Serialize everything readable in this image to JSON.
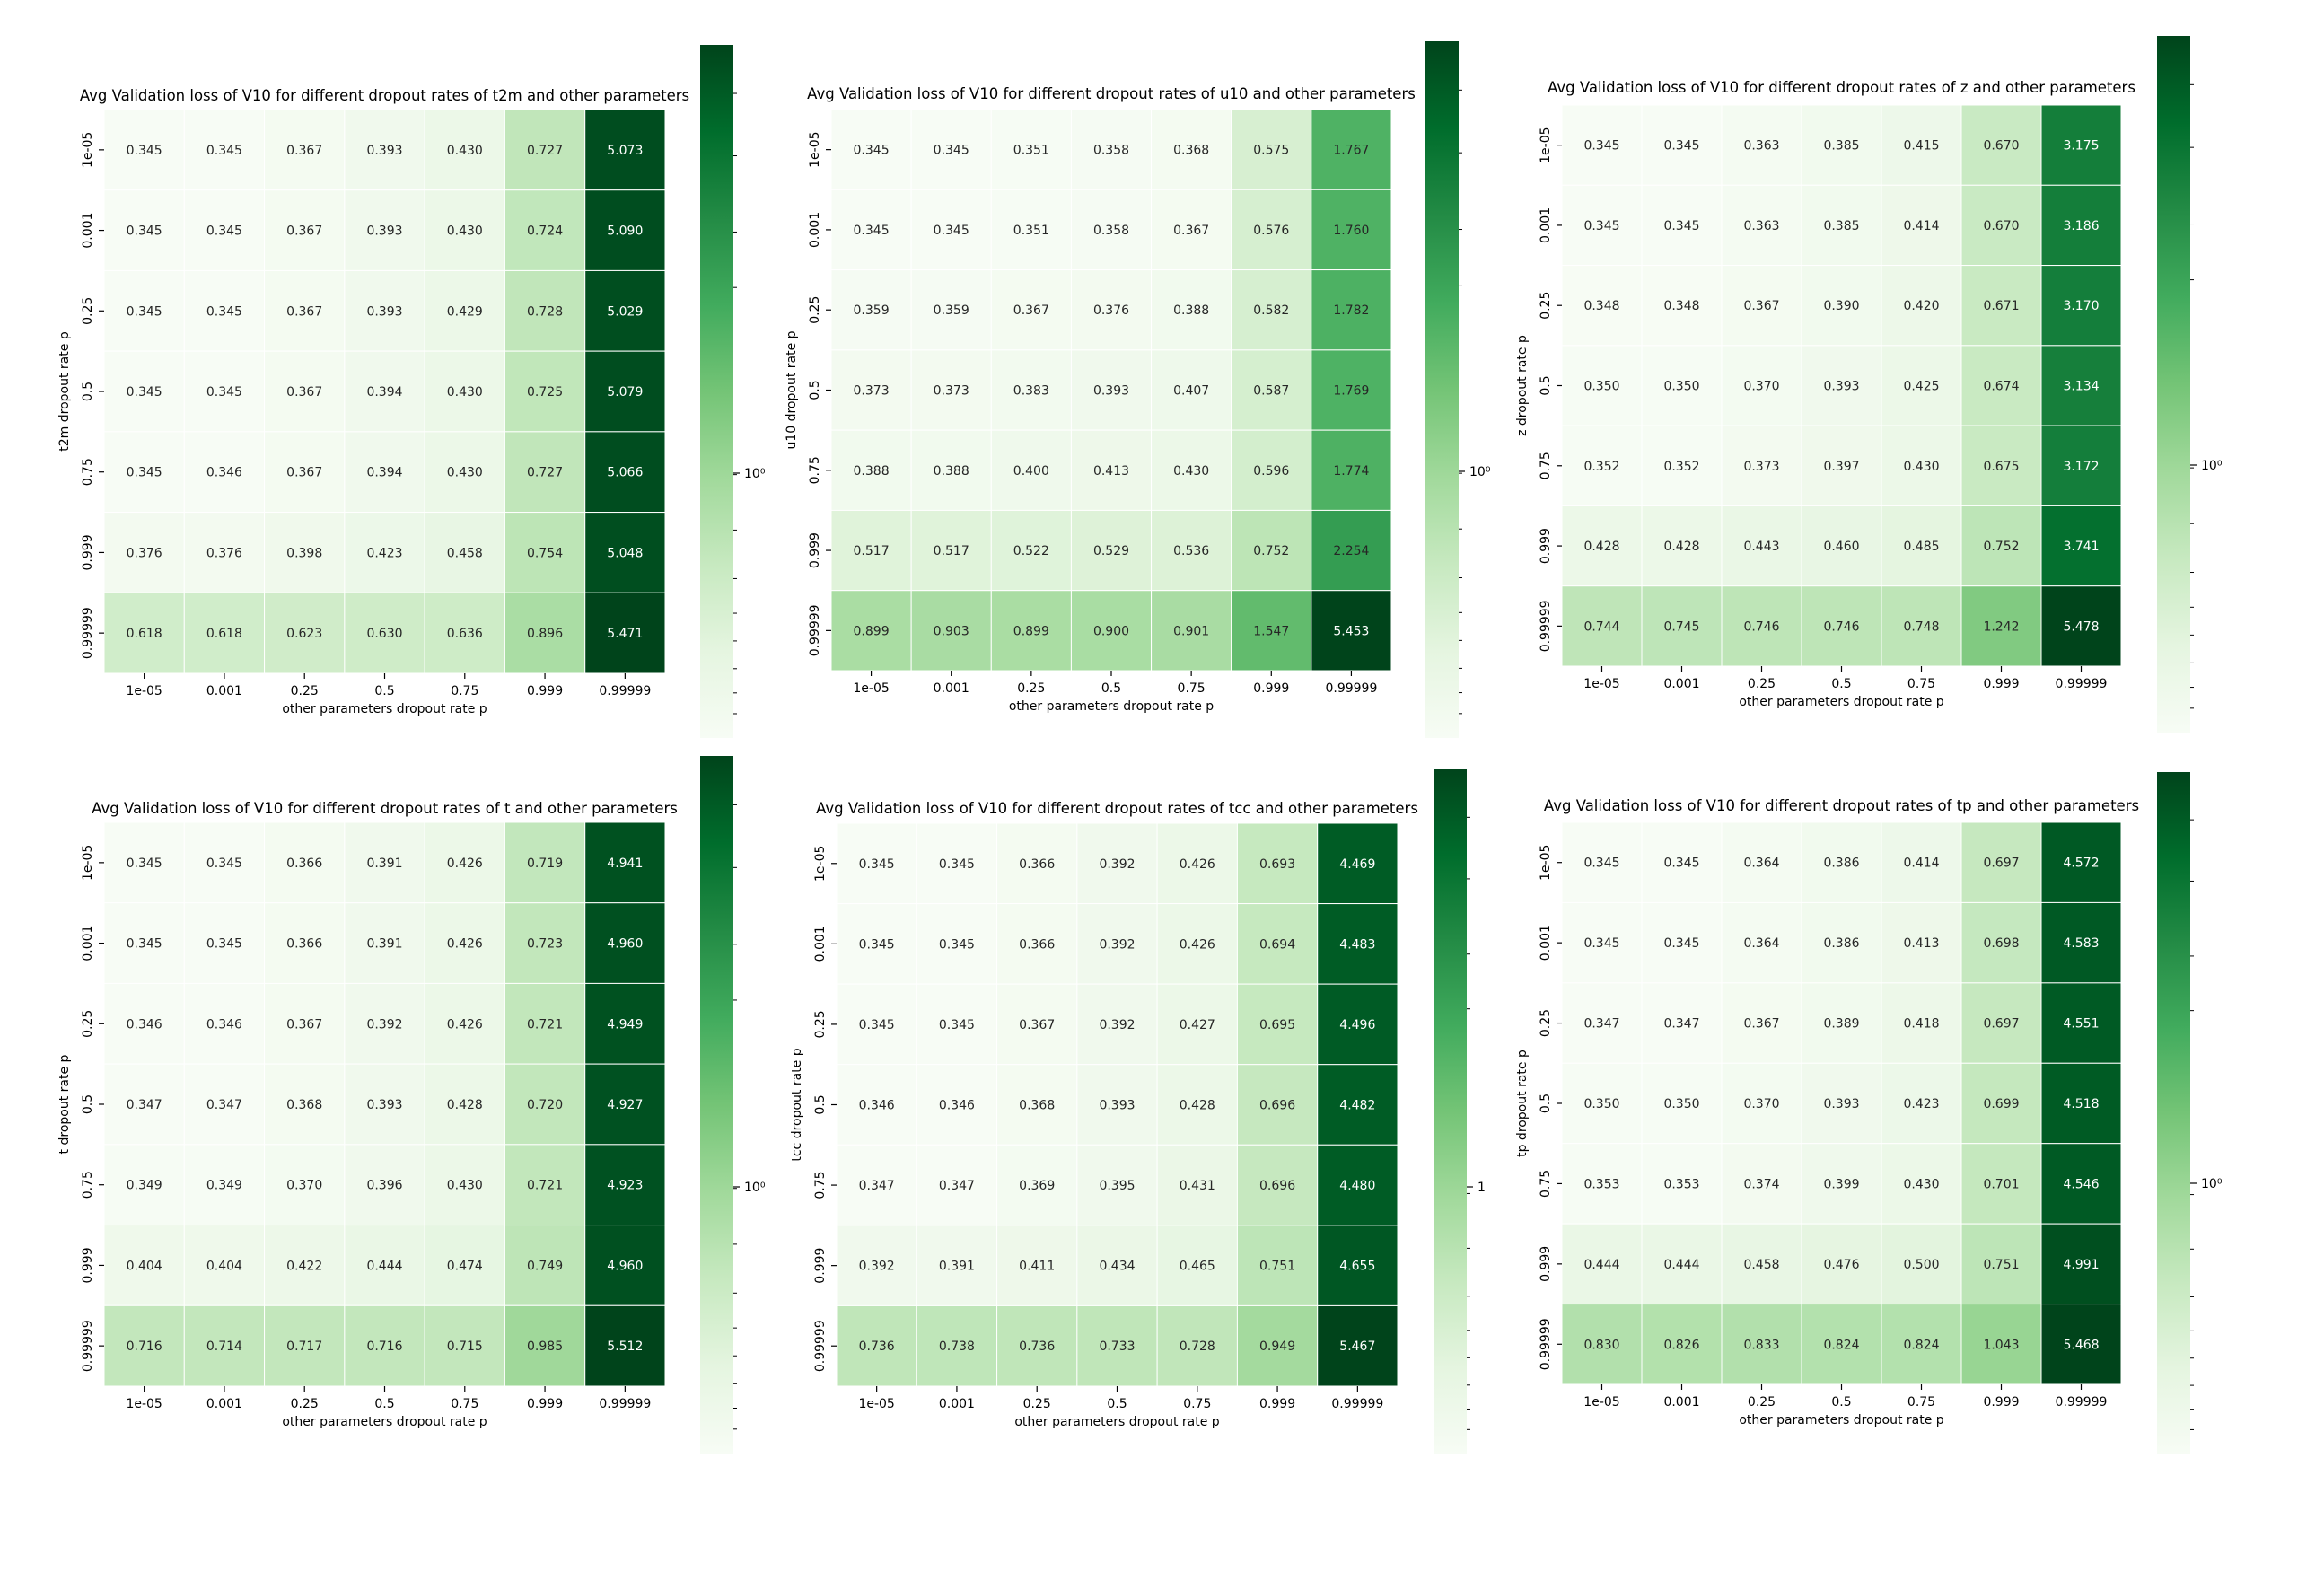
{
  "chart_data": [
    {
      "type": "heatmap",
      "title": "Avg Validation loss of V10 for different dropout rates of t2m and other parameters",
      "xlabel": "other parameters dropout rate p",
      "ylabel": "t2m dropout rate p",
      "x_categories": [
        "1e-05",
        "0.001",
        "0.25",
        "0.5",
        "0.75",
        "0.999",
        "0.99999"
      ],
      "y_categories": [
        "1e-05",
        "0.001",
        "0.25",
        "0.5",
        "0.75",
        "0.999",
        "0.99999"
      ],
      "colorbar_label": "10⁰",
      "color_scale": "log",
      "colormap": "Greens",
      "values": [
        [
          "0.345",
          "0.345",
          "0.367",
          "0.393",
          "0.430",
          "0.727",
          "5.073"
        ],
        [
          "0.345",
          "0.345",
          "0.367",
          "0.393",
          "0.430",
          "0.724",
          "5.090"
        ],
        [
          "0.345",
          "0.345",
          "0.367",
          "0.393",
          "0.429",
          "0.728",
          "5.029"
        ],
        [
          "0.345",
          "0.345",
          "0.367",
          "0.394",
          "0.430",
          "0.725",
          "5.079"
        ],
        [
          "0.345",
          "0.346",
          "0.367",
          "0.394",
          "0.430",
          "0.727",
          "5.066"
        ],
        [
          "0.376",
          "0.376",
          "0.398",
          "0.423",
          "0.458",
          "0.754",
          "5.048"
        ],
        [
          "0.618",
          "0.618",
          "0.623",
          "0.630",
          "0.636",
          "0.896",
          "5.471"
        ]
      ]
    },
    {
      "type": "heatmap",
      "title": "Avg Validation loss of V10 for different dropout rates of u10 and other parameters",
      "xlabel": "other parameters dropout rate p",
      "ylabel": "u10 dropout rate p",
      "x_categories": [
        "1e-05",
        "0.001",
        "0.25",
        "0.5",
        "0.75",
        "0.999",
        "0.99999"
      ],
      "y_categories": [
        "1e-05",
        "0.001",
        "0.25",
        "0.5",
        "0.75",
        "0.999",
        "0.99999"
      ],
      "colorbar_label": "10⁰",
      "color_scale": "log",
      "colormap": "Greens",
      "values": [
        [
          "0.345",
          "0.345",
          "0.351",
          "0.358",
          "0.368",
          "0.575",
          "1.767"
        ],
        [
          "0.345",
          "0.345",
          "0.351",
          "0.358",
          "0.367",
          "0.576",
          "1.760"
        ],
        [
          "0.359",
          "0.359",
          "0.367",
          "0.376",
          "0.388",
          "0.582",
          "1.782"
        ],
        [
          "0.373",
          "0.373",
          "0.383",
          "0.393",
          "0.407",
          "0.587",
          "1.769"
        ],
        [
          "0.388",
          "0.388",
          "0.400",
          "0.413",
          "0.430",
          "0.596",
          "1.774"
        ],
        [
          "0.517",
          "0.517",
          "0.522",
          "0.529",
          "0.536",
          "0.752",
          "2.254"
        ],
        [
          "0.899",
          "0.903",
          "0.899",
          "0.900",
          "0.901",
          "1.547",
          "5.453"
        ]
      ]
    },
    {
      "type": "heatmap",
      "title": "Avg Validation loss of V10 for different dropout rates of z and other parameters",
      "xlabel": "other parameters dropout rate p",
      "ylabel": "z dropout rate p",
      "x_categories": [
        "1e-05",
        "0.001",
        "0.25",
        "0.5",
        "0.75",
        "0.999",
        "0.99999"
      ],
      "y_categories": [
        "1e-05",
        "0.001",
        "0.25",
        "0.5",
        "0.75",
        "0.999",
        "0.99999"
      ],
      "colorbar_label": "10⁰",
      "color_scale": "log",
      "colormap": "Greens",
      "values": [
        [
          "0.345",
          "0.345",
          "0.363",
          "0.385",
          "0.415",
          "0.670",
          "3.175"
        ],
        [
          "0.345",
          "0.345",
          "0.363",
          "0.385",
          "0.414",
          "0.670",
          "3.186"
        ],
        [
          "0.348",
          "0.348",
          "0.367",
          "0.390",
          "0.420",
          "0.671",
          "3.170"
        ],
        [
          "0.350",
          "0.350",
          "0.370",
          "0.393",
          "0.425",
          "0.674",
          "3.134"
        ],
        [
          "0.352",
          "0.352",
          "0.373",
          "0.397",
          "0.430",
          "0.675",
          "3.172"
        ],
        [
          "0.428",
          "0.428",
          "0.443",
          "0.460",
          "0.485",
          "0.752",
          "3.741"
        ],
        [
          "0.744",
          "0.745",
          "0.746",
          "0.746",
          "0.748",
          "1.242",
          "5.478"
        ]
      ]
    },
    {
      "type": "heatmap",
      "title": "Avg Validation loss of V10 for different dropout rates of t and other parameters",
      "xlabel": "other parameters dropout rate p",
      "ylabel": "t dropout rate p",
      "x_categories": [
        "1e-05",
        "0.001",
        "0.25",
        "0.5",
        "0.75",
        "0.999",
        "0.99999"
      ],
      "y_categories": [
        "1e-05",
        "0.001",
        "0.25",
        "0.5",
        "0.75",
        "0.999",
        "0.99999"
      ],
      "colorbar_label": "10⁰",
      "color_scale": "log",
      "colormap": "Greens",
      "values": [
        [
          "0.345",
          "0.345",
          "0.366",
          "0.391",
          "0.426",
          "0.719",
          "4.941"
        ],
        [
          "0.345",
          "0.345",
          "0.366",
          "0.391",
          "0.426",
          "0.723",
          "4.960"
        ],
        [
          "0.346",
          "0.346",
          "0.367",
          "0.392",
          "0.426",
          "0.721",
          "4.949"
        ],
        [
          "0.347",
          "0.347",
          "0.368",
          "0.393",
          "0.428",
          "0.720",
          "4.927"
        ],
        [
          "0.349",
          "0.349",
          "0.370",
          "0.396",
          "0.430",
          "0.721",
          "4.923"
        ],
        [
          "0.404",
          "0.404",
          "0.422",
          "0.444",
          "0.474",
          "0.749",
          "4.960"
        ],
        [
          "0.716",
          "0.714",
          "0.717",
          "0.716",
          "0.715",
          "0.985",
          "5.512"
        ]
      ]
    },
    {
      "type": "heatmap",
      "title": "Avg Validation loss of V10 for different dropout rates of tcc and other parameters",
      "xlabel": "other parameters dropout rate p",
      "ylabel": "tcc dropout rate p",
      "x_categories": [
        "1e-05",
        "0.001",
        "0.25",
        "0.5",
        "0.75",
        "0.999",
        "0.99999"
      ],
      "y_categories": [
        "1e-05",
        "0.001",
        "0.25",
        "0.5",
        "0.75",
        "0.999",
        "0.99999"
      ],
      "colorbar_label": "1",
      "color_scale": "log",
      "colormap": "Greens",
      "values": [
        [
          "0.345",
          "0.345",
          "0.366",
          "0.392",
          "0.426",
          "0.693",
          "4.469"
        ],
        [
          "0.345",
          "0.345",
          "0.366",
          "0.392",
          "0.426",
          "0.694",
          "4.483"
        ],
        [
          "0.345",
          "0.345",
          "0.367",
          "0.392",
          "0.427",
          "0.695",
          "4.496"
        ],
        [
          "0.346",
          "0.346",
          "0.368",
          "0.393",
          "0.428",
          "0.696",
          "4.482"
        ],
        [
          "0.347",
          "0.347",
          "0.369",
          "0.395",
          "0.431",
          "0.696",
          "4.480"
        ],
        [
          "0.392",
          "0.391",
          "0.411",
          "0.434",
          "0.465",
          "0.751",
          "4.655"
        ],
        [
          "0.736",
          "0.738",
          "0.736",
          "0.733",
          "0.728",
          "0.949",
          "5.467"
        ]
      ]
    },
    {
      "type": "heatmap",
      "title": "Avg Validation loss of V10 for different dropout rates of tp and other parameters",
      "xlabel": "other parameters dropout rate p",
      "ylabel": "tp dropout rate p",
      "x_categories": [
        "1e-05",
        "0.001",
        "0.25",
        "0.5",
        "0.75",
        "0.999",
        "0.99999"
      ],
      "y_categories": [
        "1e-05",
        "0.001",
        "0.25",
        "0.5",
        "0.75",
        "0.999",
        "0.99999"
      ],
      "colorbar_label": "10⁰",
      "color_scale": "log",
      "colormap": "Greens",
      "values": [
        [
          "0.345",
          "0.345",
          "0.364",
          "0.386",
          "0.414",
          "0.697",
          "4.572"
        ],
        [
          "0.345",
          "0.345",
          "0.364",
          "0.386",
          "0.413",
          "0.698",
          "4.583"
        ],
        [
          "0.347",
          "0.347",
          "0.367",
          "0.389",
          "0.418",
          "0.697",
          "4.551"
        ],
        [
          "0.350",
          "0.350",
          "0.370",
          "0.393",
          "0.423",
          "0.699",
          "4.518"
        ],
        [
          "0.353",
          "0.353",
          "0.374",
          "0.399",
          "0.430",
          "0.701",
          "4.546"
        ],
        [
          "0.444",
          "0.444",
          "0.458",
          "0.476",
          "0.500",
          "0.751",
          "4.991"
        ],
        [
          "0.830",
          "0.826",
          "0.833",
          "0.824",
          "0.824",
          "1.043",
          "5.468"
        ]
      ]
    }
  ]
}
